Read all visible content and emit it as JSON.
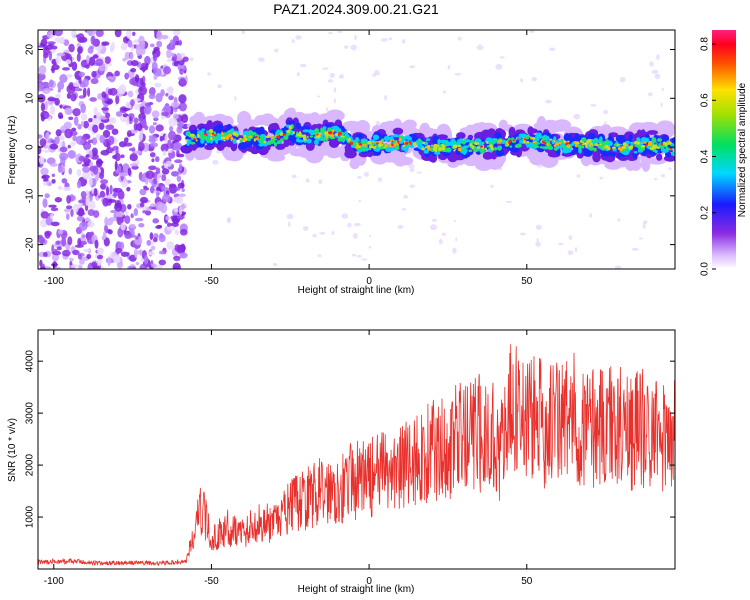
{
  "title": "PAZ1.2024.309.00.21.G21",
  "chart_data": [
    {
      "type": "heatmap",
      "xlabel": "Height of straight line (km)",
      "ylabel": "Frequency (Hz)",
      "xlim": [
        -105,
        97
      ],
      "ylim": [
        -25,
        24
      ],
      "xticks": [
        -100,
        -50,
        0,
        50
      ],
      "yticks": [
        -20,
        -10,
        0,
        10,
        20
      ],
      "colorbar": {
        "label": "Normalized spectral amplitude",
        "range": [
          0.0,
          0.85
        ],
        "ticks": [
          0.0,
          0.2,
          0.4,
          0.6,
          0.8
        ],
        "colormap": "rainbow (magenta-violet-blue-cyan-green-yellow-red)"
      },
      "noise_region_x": [
        -105,
        -58
      ],
      "signal_band": [
        {
          "x": -58,
          "f": 1.5
        },
        {
          "x": -50,
          "f": 2.5
        },
        {
          "x": -40,
          "f": 2.0
        },
        {
          "x": -30,
          "f": 1.5
        },
        {
          "x": -25,
          "f": 3.5
        },
        {
          "x": -20,
          "f": 2.0
        },
        {
          "x": -10,
          "f": 3.0
        },
        {
          "x": -5,
          "f": 0.5
        },
        {
          "x": 0,
          "f": 0.5
        },
        {
          "x": 10,
          "f": 1.0
        },
        {
          "x": 20,
          "f": 0.0
        },
        {
          "x": 30,
          "f": 0.0
        },
        {
          "x": 40,
          "f": 0.5
        },
        {
          "x": 50,
          "f": 1.5
        },
        {
          "x": 60,
          "f": 0.5
        },
        {
          "x": 70,
          "f": 0.5
        },
        {
          "x": 80,
          "f": 0.0
        },
        {
          "x": 90,
          "f": 0.5
        },
        {
          "x": 97,
          "f": 0.0
        }
      ]
    },
    {
      "type": "line",
      "xlabel": "Height of straight line (km)",
      "ylabel": "SNR (10 * v/v)",
      "xlim": [
        -105,
        97
      ],
      "ylim": [
        0,
        4600
      ],
      "xticks": [
        -100,
        -50,
        0,
        50
      ],
      "yticks": [
        1000,
        2000,
        3000,
        4000
      ],
      "color": "#e8302c",
      "series": [
        {
          "x": [
            -105,
            -95,
            -85,
            -75,
            -65,
            -58,
            -55,
            -53,
            -50,
            -45,
            -40,
            -35,
            -30,
            -25,
            -20,
            -15,
            -10,
            -5,
            0,
            5,
            10,
            15,
            20,
            25,
            30,
            35,
            40,
            42,
            44,
            45,
            50,
            55,
            60,
            65,
            70,
            75,
            80,
            85,
            90,
            97
          ],
          "values": [
            130,
            150,
            110,
            120,
            110,
            150,
            800,
            1200,
            550,
            800,
            700,
            900,
            850,
            1200,
            1350,
            1500,
            1550,
            1700,
            1750,
            1850,
            1950,
            2100,
            2250,
            2400,
            2500,
            2600,
            2550,
            2300,
            2700,
            3100,
            2950,
            2800,
            2850,
            2900,
            2750,
            2800,
            2750,
            2700,
            2650,
            2550
          ]
        }
      ]
    }
  ]
}
